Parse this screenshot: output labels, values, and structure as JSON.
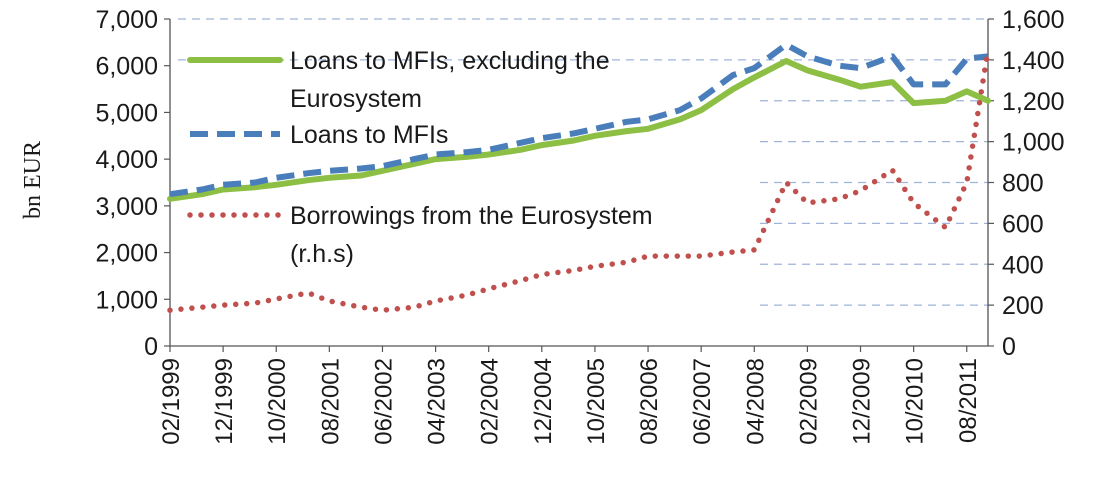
{
  "chart_data": {
    "type": "line",
    "ylabel": "bn EUR",
    "ylim_left": [
      0,
      7000
    ],
    "ylim_right": [
      0,
      1600
    ],
    "yticks_left": [
      "0",
      "1,000",
      "2,000",
      "3,000",
      "4,000",
      "5,000",
      "6,000",
      "7,000"
    ],
    "yticks_right": [
      "0",
      "200",
      "400",
      "600",
      "800",
      "1,000",
      "1,200",
      "1,400",
      "1,600"
    ],
    "xticks": [
      "02/1999",
      "12/1999",
      "10/2000",
      "08/2001",
      "06/2002",
      "04/2003",
      "02/2004",
      "12/2004",
      "10/2005",
      "08/2006",
      "06/2007",
      "04/2008",
      "02/2009",
      "12/2009",
      "10/2010",
      "08/2011"
    ],
    "grid": "horizontal dashed, right axis",
    "legend_position": "top-left",
    "series": [
      {
        "name": "Loans to MFIs, excluding the Eurosystem",
        "axis": "left",
        "color": "#8cbf44",
        "style": "solid",
        "x": [
          "02/1999",
          "08/1999",
          "12/1999",
          "06/2000",
          "10/2000",
          "04/2001",
          "08/2001",
          "02/2002",
          "06/2002",
          "12/2002",
          "04/2003",
          "10/2003",
          "02/2004",
          "08/2004",
          "12/2004",
          "06/2005",
          "10/2005",
          "04/2006",
          "08/2006",
          "02/2007",
          "06/2007",
          "12/2007",
          "04/2008",
          "10/2008",
          "02/2009",
          "08/2009",
          "12/2009",
          "06/2010",
          "10/2010",
          "04/2011",
          "08/2011",
          "12/2011"
        ],
        "values": [
          3150,
          3250,
          3350,
          3400,
          3450,
          3550,
          3600,
          3650,
          3750,
          3900,
          4000,
          4050,
          4100,
          4200,
          4300,
          4400,
          4500,
          4600,
          4650,
          4850,
          5050,
          5500,
          5750,
          6100,
          5900,
          5700,
          5550,
          5650,
          5200,
          5250,
          5450,
          5250
        ]
      },
      {
        "name": "Loans to MFIs",
        "axis": "left",
        "color": "#4a7ebb",
        "style": "dashed",
        "x": [
          "02/1999",
          "08/1999",
          "12/1999",
          "06/2000",
          "10/2000",
          "04/2001",
          "08/2001",
          "02/2002",
          "06/2002",
          "12/2002",
          "04/2003",
          "10/2003",
          "02/2004",
          "08/2004",
          "12/2004",
          "06/2005",
          "10/2005",
          "04/2006",
          "08/2006",
          "02/2007",
          "06/2007",
          "12/2007",
          "04/2008",
          "10/2008",
          "02/2009",
          "08/2009",
          "12/2009",
          "06/2010",
          "10/2010",
          "04/2011",
          "08/2011",
          "12/2011"
        ],
        "values": [
          3250,
          3350,
          3450,
          3500,
          3600,
          3700,
          3750,
          3800,
          3850,
          4000,
          4100,
          4150,
          4200,
          4350,
          4450,
          4550,
          4650,
          4800,
          4850,
          5050,
          5300,
          5800,
          5950,
          6450,
          6200,
          6000,
          5950,
          6200,
          5600,
          5600,
          6150,
          6200
        ]
      },
      {
        "name": "Borrowings from the Eurosystem\n(r.h.s)",
        "axis": "right",
        "color": "#c0504d",
        "style": "dotted",
        "x": [
          "02/1999",
          "08/1999",
          "12/1999",
          "06/2000",
          "10/2000",
          "04/2001",
          "08/2001",
          "02/2002",
          "06/2002",
          "12/2002",
          "04/2003",
          "10/2003",
          "02/2004",
          "08/2004",
          "12/2004",
          "06/2005",
          "10/2005",
          "04/2006",
          "08/2006",
          "02/2007",
          "06/2007",
          "12/2007",
          "04/2008",
          "10/2008",
          "02/2009",
          "08/2009",
          "12/2009",
          "06/2010",
          "10/2010",
          "04/2011",
          "08/2011",
          "12/2011"
        ],
        "values": [
          175,
          190,
          200,
          210,
          230,
          260,
          220,
          190,
          175,
          190,
          220,
          250,
          280,
          320,
          350,
          370,
          390,
          410,
          440,
          440,
          440,
          460,
          470,
          800,
          700,
          720,
          760,
          860,
          700,
          580,
          800,
          1450
        ]
      }
    ]
  }
}
